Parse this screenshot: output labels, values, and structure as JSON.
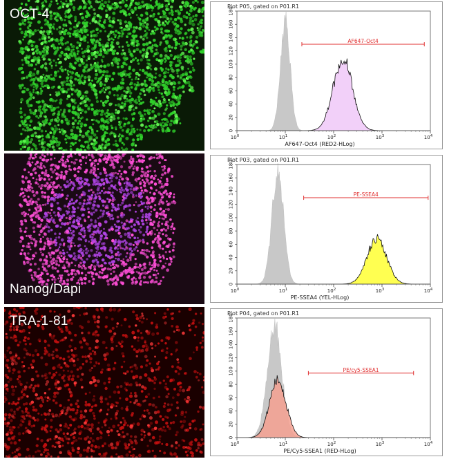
{
  "micrographs": [
    {
      "label": "OCT-4",
      "label_position": "top",
      "background": "#0a1a06",
      "cell_color": "#2fd02a",
      "cell_highlight": "#6cff5a"
    },
    {
      "label": "Nanog/Dapi",
      "label_position": "bottom",
      "background": "#1a0a14",
      "cell_color": "#b044e6",
      "cell_highlight": "#ff4fd8"
    },
    {
      "label": "TRA-1-81",
      "label_position": "top",
      "background": "#1a0000",
      "cell_color": "#c81010",
      "cell_highlight": "#ff3a3a"
    }
  ],
  "chart_data": [
    {
      "type": "histogram",
      "title": "Plot P05, gated on P01.R1",
      "xlabel": "AF647-Oct4 (RED2-HLog)",
      "x_scale": "log",
      "xlim": [
        1,
        10000
      ],
      "x_tick_labels": [
        "10^0",
        "10^1",
        "10^2",
        "10^3",
        "10^4"
      ],
      "ylim": [
        0,
        180
      ],
      "y_ticks": [
        0,
        20,
        40,
        60,
        80,
        100,
        120,
        140,
        160,
        180
      ],
      "series": [
        {
          "role": "control",
          "color": "#c8c8c8",
          "peak_x": 10,
          "peak_y": 172,
          "log_sigma": 0.1
        },
        {
          "role": "sample",
          "color": "#f0c8f8",
          "peak_x": 155,
          "peak_y": 112,
          "log_sigma": 0.2
        }
      ],
      "gate": {
        "label": "AF647-Oct4",
        "x_range": [
          22,
          7500
        ],
        "y": 130,
        "color": "#e03030"
      }
    },
    {
      "type": "histogram",
      "title": "Plot P03, gated on P01.R1",
      "xlabel": "PE-SSEA4 (YEL-HLog)",
      "x_scale": "log",
      "xlim": [
        1,
        10000
      ],
      "x_tick_labels": [
        "10^0",
        "10^1",
        "10^2",
        "10^3",
        "10^4"
      ],
      "ylim": [
        0,
        180
      ],
      "y_ticks": [
        0,
        20,
        40,
        60,
        80,
        100,
        120,
        140,
        160,
        180
      ],
      "series": [
        {
          "role": "control",
          "color": "#c8c8c8",
          "peak_x": 7,
          "peak_y": 175,
          "log_sigma": 0.12
        },
        {
          "role": "sample",
          "color": "#ffff33",
          "peak_x": 780,
          "peak_y": 72,
          "log_sigma": 0.2
        }
      ],
      "gate": {
        "label": "PE-SSEA4",
        "x_range": [
          24,
          9000
        ],
        "y": 130,
        "color": "#e03030"
      }
    },
    {
      "type": "histogram",
      "title": "Plot P04, gated on P01.R1",
      "xlabel": "PE/Cy5-SSEA1 (RED-HLog)",
      "x_scale": "log",
      "xlim": [
        1,
        10000
      ],
      "x_tick_labels": [
        "10^0",
        "10^1",
        "10^2",
        "10^3",
        "10^4"
      ],
      "ylim": [
        0,
        180
      ],
      "y_ticks": [
        0,
        20,
        40,
        60,
        80,
        100,
        120,
        140,
        160,
        180
      ],
      "series": [
        {
          "role": "control",
          "color": "#c8c8c8",
          "peak_x": 6,
          "peak_y": 172,
          "log_sigma": 0.15
        },
        {
          "role": "sample",
          "color": "#f4a090",
          "peak_x": 7,
          "peak_y": 90,
          "log_sigma": 0.17
        }
      ],
      "gate": {
        "label": "PE/cy5-SSEA1",
        "x_range": [
          30,
          4500
        ],
        "y": 97,
        "color": "#e03030"
      }
    }
  ]
}
